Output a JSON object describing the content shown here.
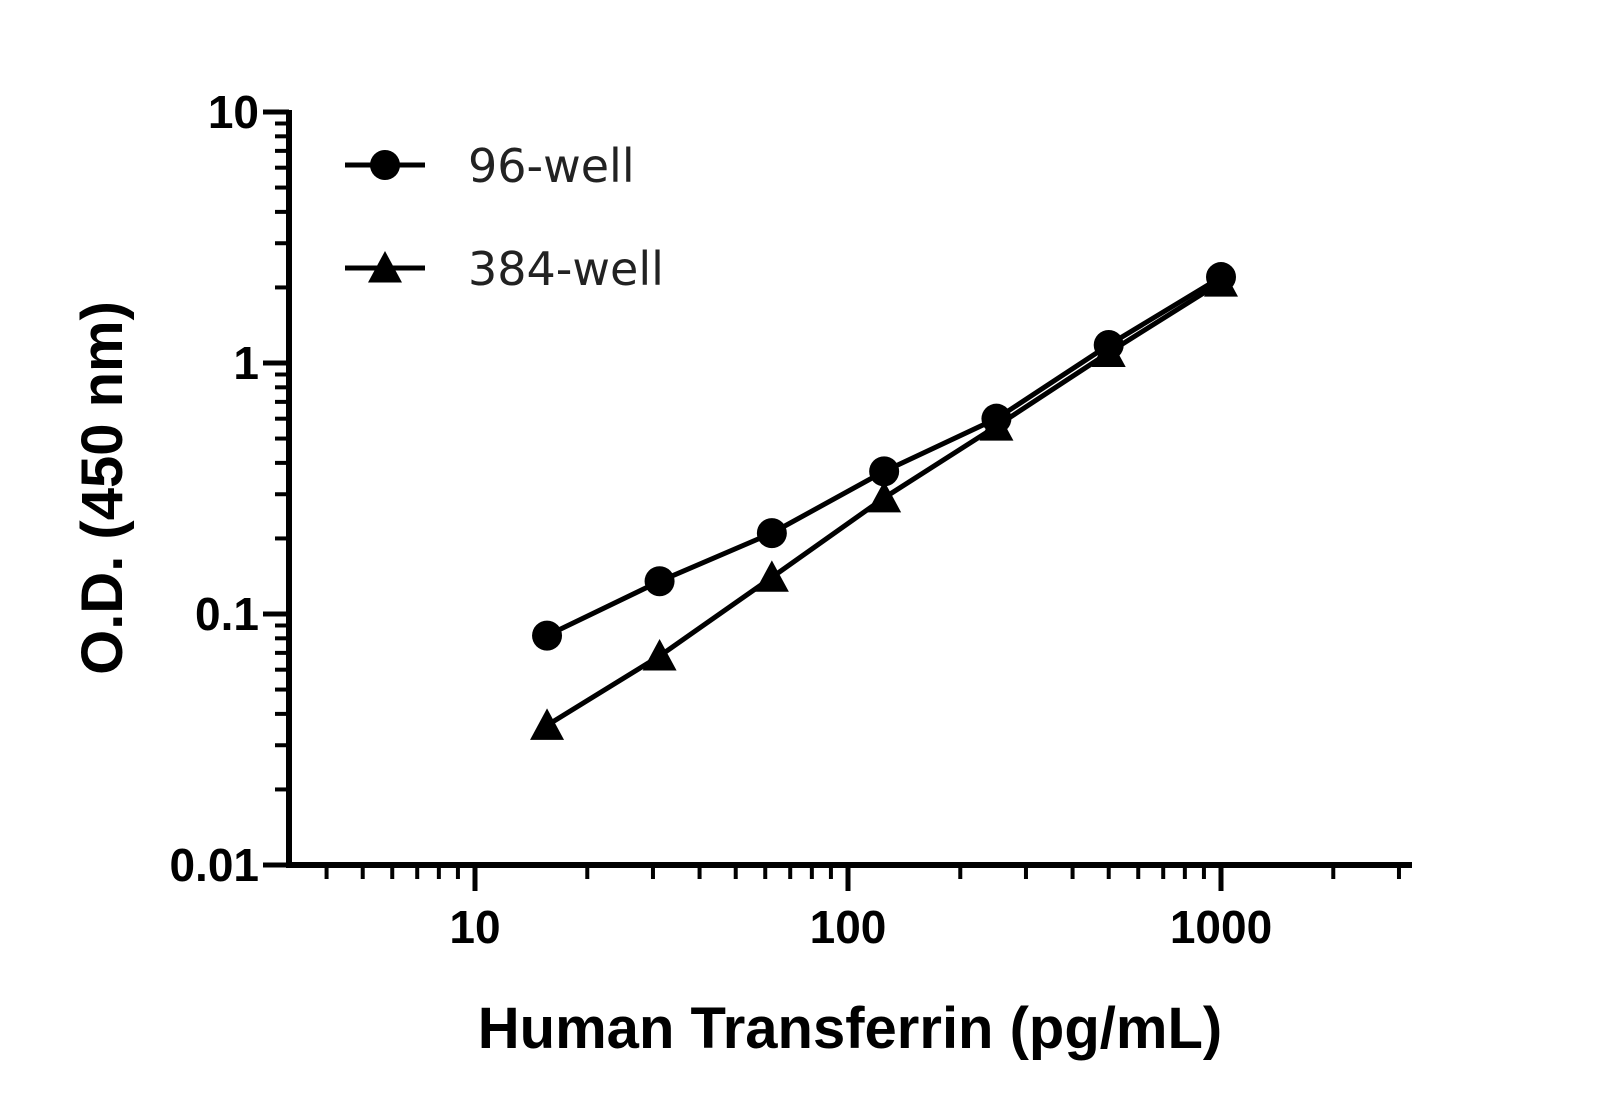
{
  "chart_data": {
    "type": "line",
    "xlabel": "Human Transferrin (pg/mL)",
    "ylabel": "O.D. (450 nm)",
    "x_scale": "log",
    "y_scale": "log",
    "xlim": [
      3.5,
      3300
    ],
    "ylim": [
      0.01,
      10
    ],
    "x_ticks": [
      10,
      100,
      1000
    ],
    "x_tick_labels": [
      "10",
      "100",
      "1000"
    ],
    "y_ticks": [
      0.01,
      0.1,
      1,
      10
    ],
    "y_tick_labels": [
      "0.01",
      "0.1",
      "1",
      "10"
    ],
    "grid": false,
    "legend_position": "top-left",
    "series": [
      {
        "name": "96-well",
        "marker": "circle",
        "color": "#000000",
        "x": [
          15.6,
          31.25,
          62.5,
          125,
          250,
          500,
          1000
        ],
        "y": [
          0.082,
          0.135,
          0.21,
          0.37,
          0.6,
          1.18,
          2.2
        ]
      },
      {
        "name": "384-well",
        "marker": "triangle",
        "color": "#000000",
        "x": [
          15.6,
          31.25,
          62.5,
          125,
          250,
          500,
          1000
        ],
        "y": [
          0.036,
          0.068,
          0.14,
          0.29,
          0.56,
          1.1,
          2.1
        ]
      }
    ]
  }
}
